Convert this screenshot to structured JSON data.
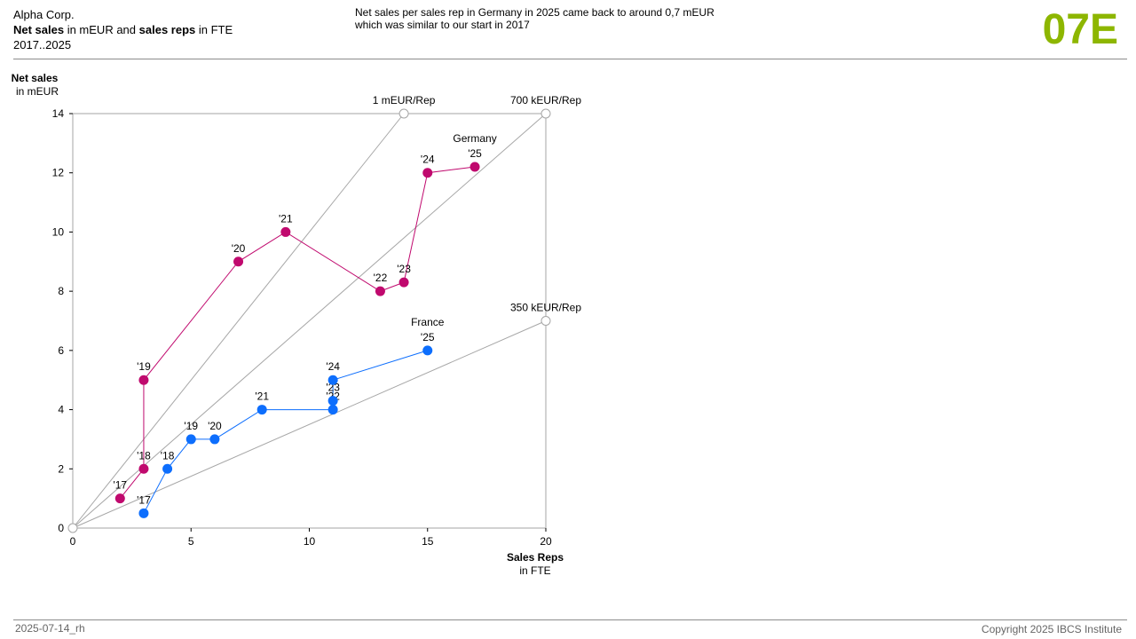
{
  "header": {
    "company": "Alpha Corp.",
    "measure_bold_1": "Net sales",
    "measure_mid": " in mEUR and ",
    "measure_bold_2": "sales reps",
    "measure_end": " in FTE",
    "period": "2017..2025",
    "message_line1": "Net sales per sales rep in Germany in 2025 came back to around 0,7 mEUR",
    "message_line2": "which was similar to our start in 2017",
    "page_id": "07E"
  },
  "footer": {
    "date": "2025-07-14_rh",
    "copyright": "Copyright 2025 IBCS Institute"
  },
  "colors": {
    "germany": "#c0096e",
    "france": "#0d6efd",
    "reference": "#a6a6a6",
    "page_id": "#8db600"
  },
  "chart_data": {
    "type": "scatter",
    "xlabel": "Sales Reps",
    "xunit": "in FTE",
    "ylabel": "Net sales",
    "yunit": "in mEUR",
    "xlim": [
      0,
      20
    ],
    "ylim": [
      0,
      14
    ],
    "xticks": [
      0,
      5,
      10,
      15,
      20
    ],
    "yticks": [
      0,
      2,
      4,
      6,
      8,
      10,
      12,
      14
    ],
    "reference_lines": [
      {
        "label": "1 mEUR/Rep",
        "end": [
          14,
          14
        ]
      },
      {
        "label": "700 kEUR/Rep",
        "end": [
          20,
          14
        ]
      },
      {
        "label": "350 kEUR/Rep",
        "end": [
          20,
          7
        ]
      }
    ],
    "series": [
      {
        "name": "Germany",
        "color": "#c0096e",
        "points": [
          {
            "year": "'17",
            "x": 2,
            "y": 1
          },
          {
            "year": "'18",
            "x": 3,
            "y": 2
          },
          {
            "year": "'19",
            "x": 3,
            "y": 5
          },
          {
            "year": "'20",
            "x": 7,
            "y": 9
          },
          {
            "year": "'21",
            "x": 9,
            "y": 10
          },
          {
            "year": "'22",
            "x": 13,
            "y": 8
          },
          {
            "year": "'23",
            "x": 14,
            "y": 8.3
          },
          {
            "year": "'24",
            "x": 15,
            "y": 12
          },
          {
            "year": "'25",
            "x": 17,
            "y": 12.2
          }
        ]
      },
      {
        "name": "France",
        "color": "#0d6efd",
        "points": [
          {
            "year": "'17",
            "x": 3,
            "y": 0.5
          },
          {
            "year": "'18",
            "x": 4,
            "y": 2
          },
          {
            "year": "'19",
            "x": 5,
            "y": 3
          },
          {
            "year": "'20",
            "x": 6,
            "y": 3
          },
          {
            "year": "'21",
            "x": 8,
            "y": 4
          },
          {
            "year": "'22",
            "x": 11,
            "y": 4
          },
          {
            "year": "'23",
            "x": 11,
            "y": 4.3
          },
          {
            "year": "'24",
            "x": 11,
            "y": 5
          },
          {
            "year": "'25",
            "x": 15,
            "y": 6
          }
        ]
      }
    ]
  }
}
